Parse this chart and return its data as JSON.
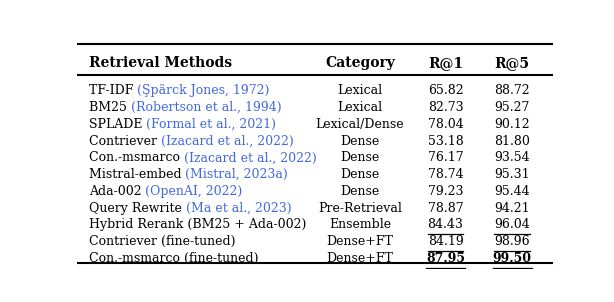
{
  "headers": [
    "Retrieval Methods",
    "Category",
    "R@1",
    "R@5"
  ],
  "rows": [
    {
      "method": "TF-IDF ",
      "cite": "(Şpärck Jones, 1972)",
      "category": "Lexical",
      "r1": "65.82",
      "r5": "88.72",
      "underline_r1": false,
      "underline_r5": false,
      "bold_r1": false,
      "bold_r5": false
    },
    {
      "method": "BM25 ",
      "cite": "(Robertson et al., 1994)",
      "category": "Lexical",
      "r1": "82.73",
      "r5": "95.27",
      "underline_r1": false,
      "underline_r5": false,
      "bold_r1": false,
      "bold_r5": false
    },
    {
      "method": "SPLADE ",
      "cite": "(Formal et al., 2021)",
      "category": "Lexical/Dense",
      "r1": "78.04",
      "r5": "90.12",
      "underline_r1": false,
      "underline_r5": false,
      "bold_r1": false,
      "bold_r5": false
    },
    {
      "method": "Contriever ",
      "cite": "(Izacard et al., 2022)",
      "category": "Dense",
      "r1": "53.18",
      "r5": "81.80",
      "underline_r1": false,
      "underline_r5": false,
      "bold_r1": false,
      "bold_r5": false
    },
    {
      "method": "Con.-msmarco ",
      "cite": "(Izacard et al., 2022)",
      "category": "Dense",
      "r1": "76.17",
      "r5": "93.54",
      "underline_r1": false,
      "underline_r5": false,
      "bold_r1": false,
      "bold_r5": false
    },
    {
      "method": "Mistral-embed ",
      "cite": "(Mistral, 2023a)",
      "category": "Dense",
      "r1": "78.74",
      "r5": "95.31",
      "underline_r1": false,
      "underline_r5": false,
      "bold_r1": false,
      "bold_r5": false
    },
    {
      "method": "Ada-002 ",
      "cite": "(OpenAI, 2022)",
      "category": "Dense",
      "r1": "79.23",
      "r5": "95.44",
      "underline_r1": false,
      "underline_r5": false,
      "bold_r1": false,
      "bold_r5": false
    },
    {
      "method": "Query Rewrite ",
      "cite": "(Ma et al., 2023)",
      "category": "Pre-Retrieval",
      "r1": "78.87",
      "r5": "94.21",
      "underline_r1": false,
      "underline_r5": false,
      "bold_r1": false,
      "bold_r5": false
    },
    {
      "method": "Hybrid Rerank (BM25 + Ada-002)",
      "cite": "",
      "category": "Ensemble",
      "r1": "84.43",
      "r5": "96.04",
      "underline_r1": true,
      "underline_r5": true,
      "bold_r1": false,
      "bold_r5": false
    },
    {
      "method": "Contriever (fine-tuned)",
      "cite": "",
      "category": "Dense+FT",
      "r1": "84.19",
      "r5": "98.96",
      "underline_r1": true,
      "underline_r5": true,
      "bold_r1": false,
      "bold_r5": false
    },
    {
      "method": "Con.-msmarco (fine-tuned)",
      "cite": "",
      "category": "Dense+FT",
      "r1": "87.95",
      "r5": "99.50",
      "underline_r1": false,
      "underline_r5": false,
      "bold_r1": true,
      "bold_r5": true
    }
  ],
  "cite_color": "#4169E1",
  "header_color": "#000000",
  "text_color": "#000000",
  "bg_color": "#ffffff",
  "figsize": [
    6.14,
    3.02
  ],
  "dpi": 100
}
